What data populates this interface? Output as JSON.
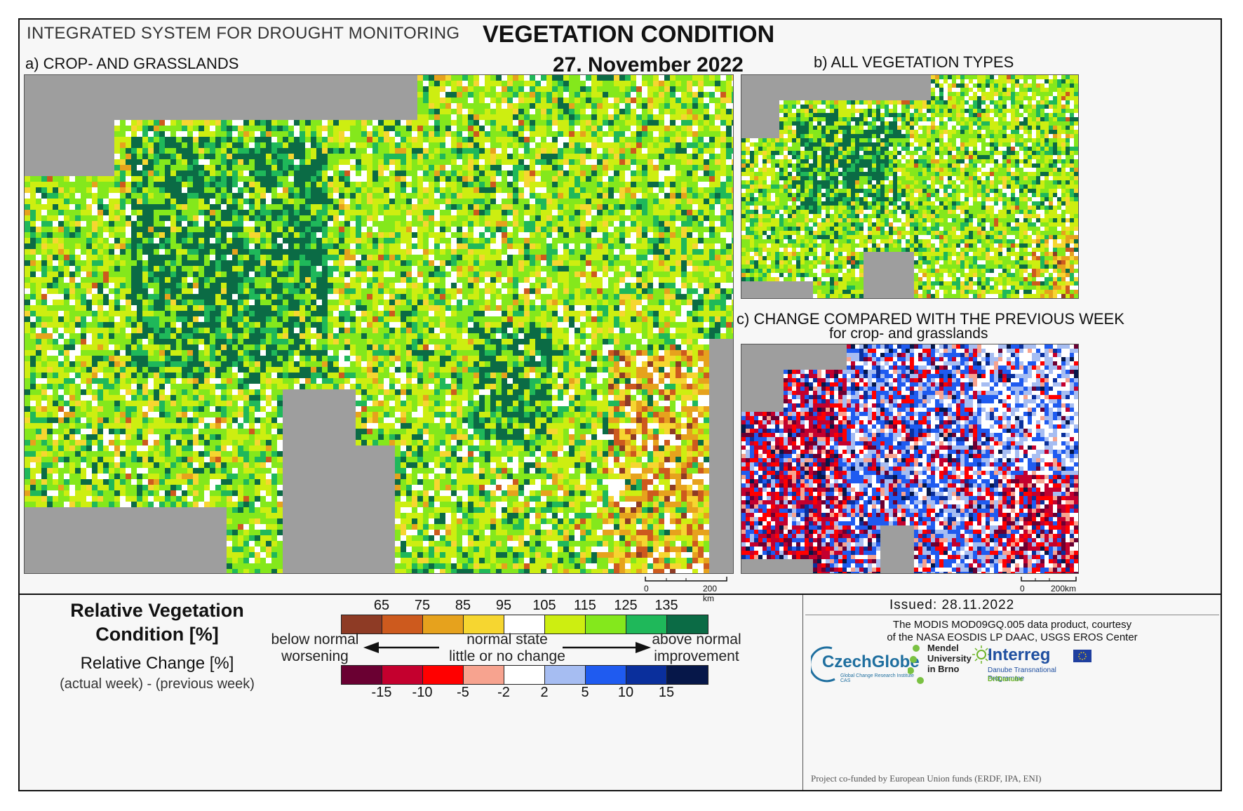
{
  "header": {
    "system_title": "INTEGRATED SYSTEM FOR DROUGHT MONITORING",
    "title": "VEGETATION CONDITION",
    "date": "27. November 2022"
  },
  "panels": {
    "a": {
      "label": "a) CROP- AND GRASSLANDS",
      "scale_zero": "0",
      "scale_end": "200 km"
    },
    "b": {
      "label": "b) ALL VEGETATION TYPES"
    },
    "c": {
      "label": "c) CHANGE COMPARED WITH THE PREVIOUS WEEK",
      "sublabel": "for crop- and grasslands",
      "scale_zero": "0",
      "scale_end": "200km"
    }
  },
  "legend": {
    "rvc_title_line1": "Relative Vegetation",
    "rvc_title_line2": "Condition [%]",
    "change_title": "Relative Change [%]",
    "change_formula": "(actual week) - (previous week)",
    "rvc_ticks": [
      "65",
      "75",
      "85",
      "95",
      "105",
      "115",
      "125",
      "135"
    ],
    "rvc_colors": [
      "#8e3b25",
      "#cd5a1e",
      "#e6a21d",
      "#f6d630",
      "#ffffff",
      "#cdee11",
      "#84e81c",
      "#1fb85a",
      "#0b6b45"
    ],
    "change_ticks": [
      "-15",
      "-10",
      "-5",
      "-2",
      "2",
      "5",
      "10",
      "15"
    ],
    "change_colors": [
      "#6a0032",
      "#c4002e",
      "#ff0000",
      "#f7a38f",
      "#ffffff",
      "#a6bdf2",
      "#1f5bf0",
      "#0a2f9c",
      "#061749"
    ],
    "left_desc_1": "below normal",
    "left_desc_2": "worsening",
    "center_desc_1": "normal state",
    "center_desc_2": "little or no change",
    "right_desc_1": "above normal",
    "right_desc_2": "improvement"
  },
  "credits": {
    "issued": "Issued: 28.11.2022",
    "courtesy_1": "The MODIS MOD09GQ.005 data product, courtesy",
    "courtesy_2": "of the NASA EOSDIS LP DAAC, USGS EROS Center",
    "czechglobe": "CzechGlobe",
    "czechglobe_sub": "Global Change Research Institute CAS",
    "mendel_1": "Mendel",
    "mendel_2": "University",
    "mendel_3": "in Brno",
    "interreg": "Interreg",
    "interreg_sub": "Danube Transnational Programme",
    "dridanube": "DriDanube",
    "funded": "Project co-funded by European Union funds (ERDF, IPA, ENI)"
  }
}
